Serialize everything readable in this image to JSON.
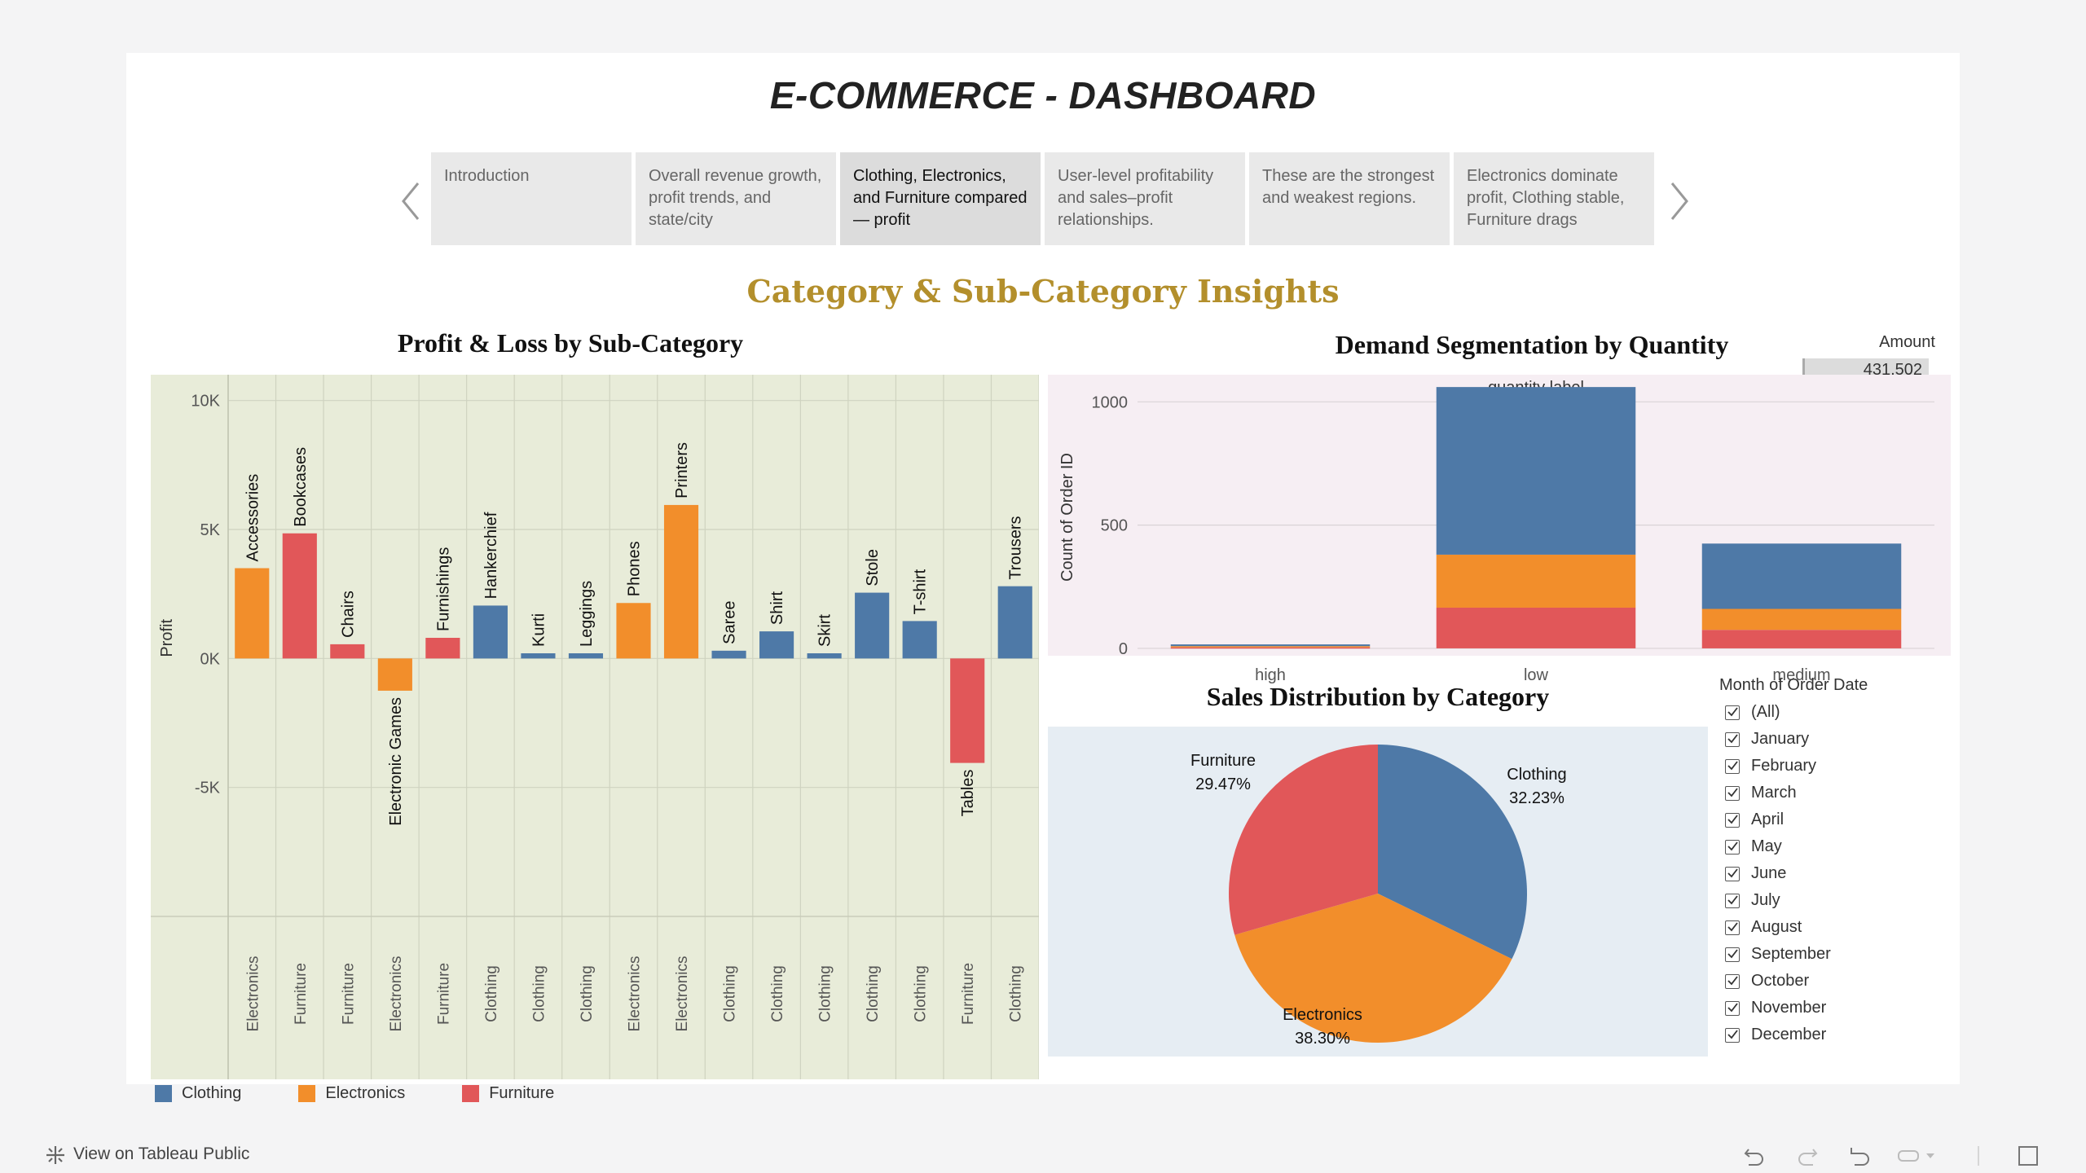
{
  "dashboard": {
    "title": "E-COMMERCE - DASHBOARD"
  },
  "story": {
    "tabs": [
      {
        "label": "Introduction",
        "active": false
      },
      {
        "label": "Overall revenue growth, profit trends, and state/city",
        "active": false
      },
      {
        "label": "Clothing, Electronics, and Furniture compared — profit",
        "active": true
      },
      {
        "label": "User-level profitability and sales–profit relationships.",
        "active": false
      },
      {
        "label": "These are the strongest and weakest regions.",
        "active": false
      },
      {
        "label": "Electronics dominate profit, Clothing stable, Furniture drags",
        "active": false
      }
    ],
    "prev_icon": "chevron-left-icon",
    "next_icon": "chevron-right-icon"
  },
  "section": {
    "title": "Category & Sub-Category Insights"
  },
  "colors": {
    "Clothing": "#4e79a7",
    "Electronics": "#f28e2b",
    "Furniture": "#e15759"
  },
  "chart_data": [
    {
      "type": "bar",
      "title": "Profit & Loss by Sub-Category",
      "ylabel": "Profit",
      "ylim": [
        -10000,
        11000
      ],
      "yticks": [
        "10K",
        "5K",
        "0K",
        "-5K"
      ],
      "ytick_values": [
        10000,
        5000,
        0,
        -5000
      ],
      "categories": [
        "Accessories",
        "Bookcases",
        "Chairs",
        "Electronic Games",
        "Furnishings",
        "Hankerchief",
        "Kurti",
        "Leggings",
        "Phones",
        "Printers",
        "Saree",
        "Shirt",
        "Skirt",
        "Stole",
        "T-shirt",
        "Tables",
        "Trousers"
      ],
      "parent_categories": [
        "Electronics",
        "Furniture",
        "Furniture",
        "Electronics",
        "Furniture",
        "Clothing",
        "Clothing",
        "Clothing",
        "Electronics",
        "Electronics",
        "Clothing",
        "Clothing",
        "Clothing",
        "Clothing",
        "Clothing",
        "Furniture",
        "Clothing"
      ],
      "values": [
        3500,
        4850,
        550,
        -1250,
        800,
        2050,
        200,
        200,
        2150,
        5950,
        300,
        1050,
        200,
        2550,
        1450,
        -4050,
        2800
      ],
      "legend": [
        "Clothing",
        "Electronics",
        "Furniture"
      ],
      "grid": true
    },
    {
      "type": "bar",
      "stacked": true,
      "title": "Demand Segmentation by Quantity",
      "xlabel": "quantity label",
      "ylabel": "Count of Order ID",
      "ylim": [
        -30,
        1110
      ],
      "yticks": [
        "1000",
        "500",
        "0"
      ],
      "ytick_values": [
        1000,
        500,
        0
      ],
      "categories": [
        "high",
        "low",
        "medium"
      ],
      "series": [
        {
          "name": "Furniture",
          "values": [
            4,
            165,
            75
          ]
        },
        {
          "name": "Electronics",
          "values": [
            5,
            215,
            85
          ]
        },
        {
          "name": "Clothing",
          "values": [
            7,
            680,
            265
          ]
        }
      ],
      "grid": true
    },
    {
      "type": "pie",
      "title": "Sales Distribution by Category",
      "slices": [
        {
          "label": "Clothing",
          "value": 32.23,
          "display": "32.23%"
        },
        {
          "label": "Electronics",
          "value": 38.3,
          "display": "38.30%"
        },
        {
          "label": "Furniture",
          "value": 29.47,
          "display": "29.47%"
        }
      ]
    }
  ],
  "amount": {
    "label": "Amount",
    "value": "431,502"
  },
  "filter": {
    "title": "Month of Order Date",
    "options": [
      "(All)",
      "January",
      "February",
      "March",
      "April",
      "May",
      "June",
      "July",
      "August",
      "September",
      "October",
      "November",
      "December"
    ],
    "checked": true
  },
  "footer": {
    "view_label": "View on Tableau Public",
    "icons": [
      "tableau-logo-icon",
      "undo-icon",
      "redo-icon",
      "revert-icon",
      "refresh-icon",
      "fullscreen-icon"
    ]
  }
}
